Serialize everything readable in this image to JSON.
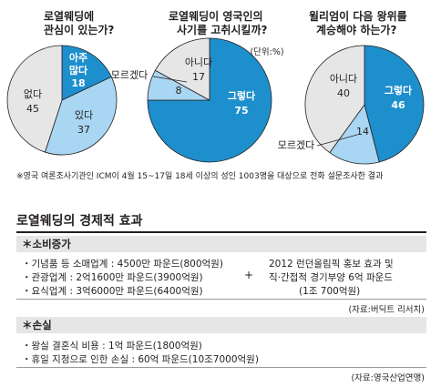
{
  "unit_note": "(단위:%)",
  "chart_data": [
    {
      "type": "pie",
      "title_lines": [
        "로열웨딩에",
        "관심이 있는가?"
      ],
      "slices": [
        {
          "label": [
            "아주",
            "많다"
          ],
          "value": 18,
          "color": "#1e8fcd"
        },
        {
          "label": [
            "있다"
          ],
          "value": 37,
          "color": "#a9d6f2"
        },
        {
          "label": [
            "없다"
          ],
          "value": 45,
          "color": "#e6e6e6"
        }
      ]
    },
    {
      "type": "pie",
      "title_lines": [
        "로열웨딩이 영국인의",
        "사기를 고취시킬까?"
      ],
      "slices": [
        {
          "label": [
            "그렇다"
          ],
          "value": 75,
          "color": "#1e8fcd"
        },
        {
          "label": [
            "모르겠다"
          ],
          "value": 8,
          "color": "#a9d6f2"
        },
        {
          "label": [
            "아니다"
          ],
          "value": 17,
          "color": "#e6e6e6"
        }
      ]
    },
    {
      "type": "pie",
      "title_lines": [
        "윌리엄이 다음 왕위를",
        "계승해야 하는가?"
      ],
      "slices": [
        {
          "label": [
            "그렇다"
          ],
          "value": 46,
          "color": "#1e8fcd"
        },
        {
          "label": [
            "모르겠다"
          ],
          "value": 14,
          "color": "#a9d6f2"
        },
        {
          "label": [
            "아니다"
          ],
          "value": 40,
          "color": "#e6e6e6"
        }
      ]
    }
  ],
  "footnote": "※영국 여론조사기관인 ICM이 4월 15~17일 18세 이상의 성인 1003명을 대상으로 전화 설문조사한 결과",
  "table": {
    "title": "로열웨딩의 경제적 효과",
    "consumption": {
      "header": "＊소비증가",
      "items": [
        "・기념품 등 소매업계 : 4500만 파운드(800억원)",
        "・관광업계 : 2억1600만 파운드(3900억원)",
        "・요식업계 : 3억6000만 파운드(6400억원)"
      ],
      "plus": "+",
      "olympic": [
        "2012 런던올림픽 홍보 효과 및",
        "직·간접적 경기부양 6억 파운드",
        "(1조 700억원)"
      ],
      "source": "(자료:버딕트 리서치)"
    },
    "loss": {
      "header": "＊손실",
      "items": [
        "・왕실 결혼식 비용 : 1억 파운드(1800억원)",
        "・휴일 지정으로 인한 손실 : 60억 파운드(10조7000억원)"
      ],
      "source": "(자료:영국산업연맹)"
    }
  }
}
